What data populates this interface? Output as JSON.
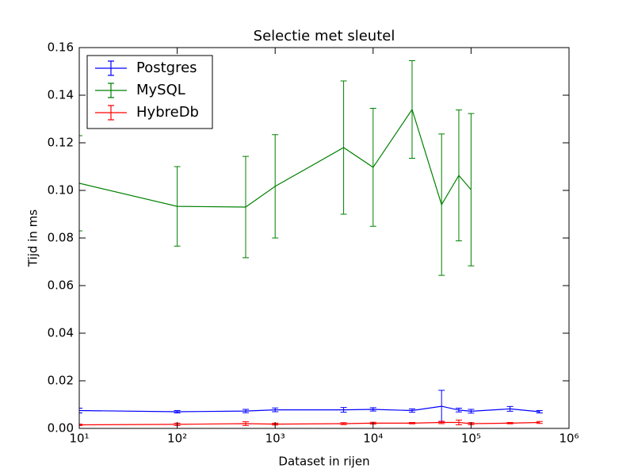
{
  "chart_data": {
    "type": "errorbar-line",
    "title": "Selectie met sleutel",
    "xlabel": "Dataset in rijen",
    "ylabel": "Tijd in ms",
    "xscale": "log",
    "x": [
      10,
      100,
      500,
      1000,
      5000,
      10000,
      25000,
      50000,
      75000,
      100000,
      250000,
      500000
    ],
    "xlim": [
      10,
      1000000
    ],
    "xticks": [
      {
        "value": 10,
        "label": "10¹"
      },
      {
        "value": 100,
        "label": "10²"
      },
      {
        "value": 1000,
        "label": "10³"
      },
      {
        "value": 10000,
        "label": "10⁴"
      },
      {
        "value": 100000,
        "label": "10⁵"
      },
      {
        "value": 1000000,
        "label": "10⁶"
      }
    ],
    "ylim": [
      0,
      0.16
    ],
    "yticks": [
      {
        "value": 0,
        "label": "0.00"
      },
      {
        "value": 0.02,
        "label": "0.02"
      },
      {
        "value": 0.04,
        "label": "0.04"
      },
      {
        "value": 0.06,
        "label": "0.06"
      },
      {
        "value": 0.08,
        "label": "0.08"
      },
      {
        "value": 0.1,
        "label": "0.10"
      },
      {
        "value": 0.12,
        "label": "0.12"
      },
      {
        "value": 0.14,
        "label": "0.14"
      },
      {
        "value": 0.16,
        "label": "0.16"
      }
    ],
    "legend": "upper left",
    "series": [
      {
        "name": "Postgres",
        "color": "#0000ff",
        "values": [
          0.0075,
          0.007,
          0.0073,
          0.0078,
          0.0078,
          0.008,
          0.0075,
          0.0093,
          0.0077,
          0.0072,
          0.0082,
          0.007
        ],
        "errors": [
          0.001,
          0.0005,
          0.0007,
          0.0008,
          0.001,
          0.0007,
          0.0007,
          0.0067,
          0.0008,
          0.0008,
          0.001,
          0.0005
        ]
      },
      {
        "name": "MySQL",
        "color": "#008000",
        "values": [
          0.103,
          0.0933,
          0.093,
          0.1017,
          0.118,
          0.1097,
          0.134,
          0.094,
          0.1063,
          0.1003,
          null,
          null
        ],
        "errors": [
          0.02,
          0.0167,
          0.0213,
          0.0217,
          0.028,
          0.0248,
          0.0205,
          0.0297,
          0.0275,
          0.032,
          null,
          null
        ]
      },
      {
        "name": "HybreDb",
        "color": "#ff0000",
        "values": [
          0.0015,
          0.0017,
          0.002,
          0.0018,
          0.002,
          0.0022,
          0.0022,
          0.0025,
          0.0025,
          0.002,
          0.0022,
          0.0025
        ],
        "errors": [
          0.0003,
          0.0005,
          0.0008,
          0.0004,
          0.0004,
          0.0004,
          0.0003,
          0.0005,
          0.001,
          0.0004,
          0.0003,
          0.0004
        ]
      }
    ]
  }
}
